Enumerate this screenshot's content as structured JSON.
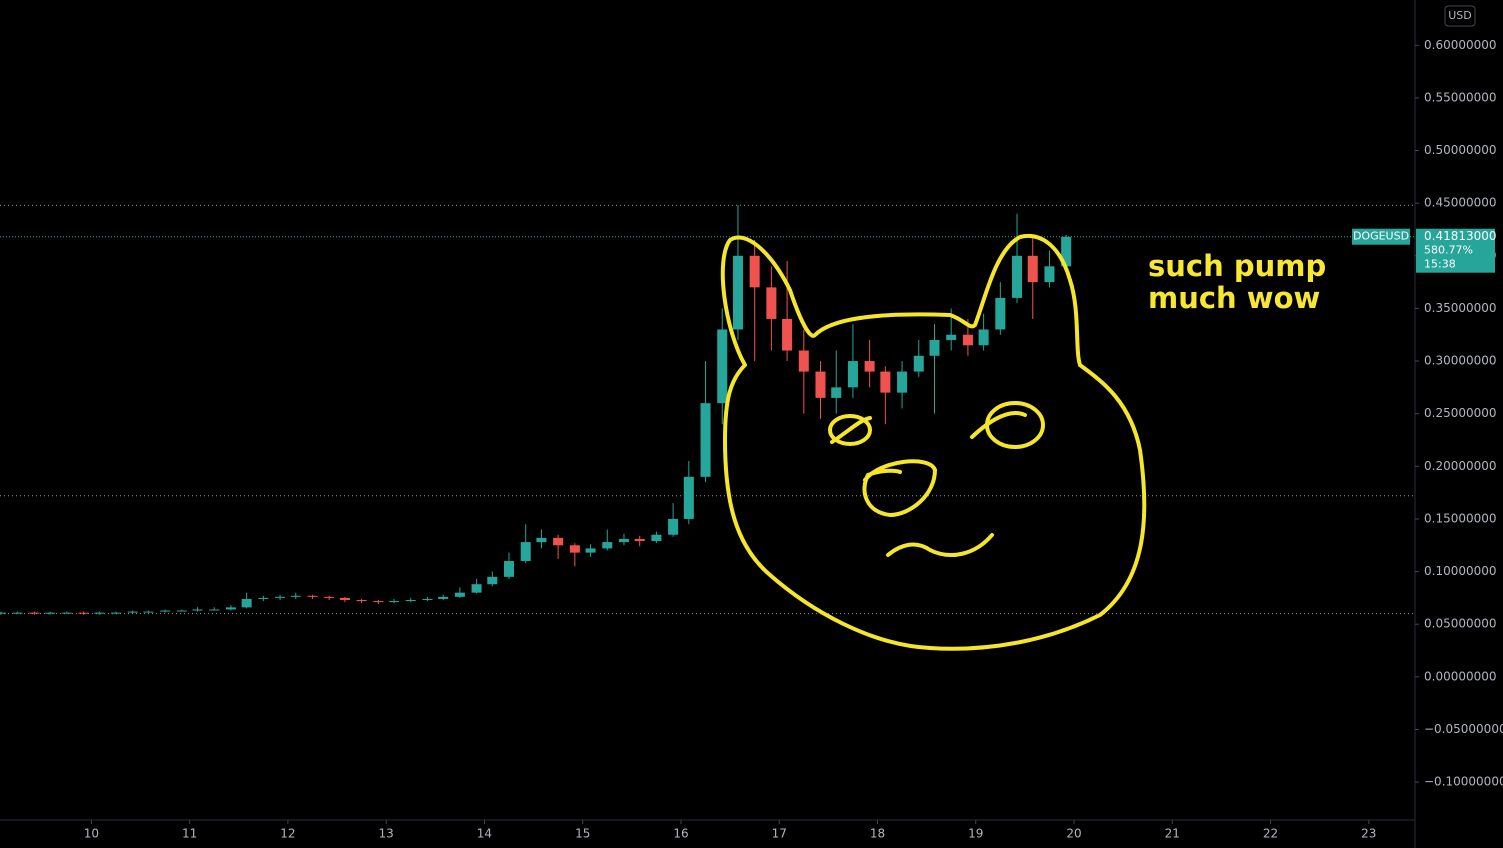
{
  "chart_data": {
    "type": "candlestick",
    "symbol": "DOGEUSD",
    "currency": "USD",
    "last_price": {
      "value": 0.41813,
      "label": "0.41813000"
    },
    "change_label": "580.77%",
    "countdown": "15:38",
    "annotations": [
      "such pump",
      "much wow"
    ],
    "up_color": "#26a69a",
    "down_color": "#ef5350",
    "price_lines": [
      0.448,
      0.172,
      0.06
    ],
    "x": [
      9.08,
      9.25,
      9.42,
      9.58,
      9.75,
      9.92,
      10.08,
      10.25,
      10.42,
      10.58,
      10.75,
      10.92,
      11.08,
      11.25,
      11.42,
      11.58,
      11.75,
      11.92,
      12.08,
      12.25,
      12.42,
      12.58,
      12.75,
      12.92,
      13.08,
      13.25,
      13.42,
      13.58,
      13.75,
      13.92,
      14.08,
      14.25,
      14.42,
      14.58,
      14.75,
      14.92,
      15.08,
      15.25,
      15.42,
      15.58,
      15.75,
      15.92,
      16.08,
      16.25,
      16.42,
      16.58,
      16.75,
      16.92,
      17.08,
      17.25,
      17.42,
      17.58,
      17.75,
      17.92,
      18.08,
      18.25,
      18.42,
      18.58,
      18.75,
      18.92,
      19.08,
      19.25,
      19.42,
      19.58,
      19.75,
      19.92
    ],
    "open": [
      0.06,
      0.061,
      0.061,
      0.06,
      0.061,
      0.061,
      0.06,
      0.061,
      0.061,
      0.062,
      0.062,
      0.063,
      0.063,
      0.064,
      0.064,
      0.066,
      0.074,
      0.075,
      0.076,
      0.077,
      0.076,
      0.075,
      0.073,
      0.072,
      0.071,
      0.072,
      0.073,
      0.074,
      0.076,
      0.08,
      0.088,
      0.095,
      0.11,
      0.128,
      0.132,
      0.125,
      0.118,
      0.122,
      0.128,
      0.131,
      0.129,
      0.135,
      0.15,
      0.19,
      0.26,
      0.33,
      0.4,
      0.37,
      0.34,
      0.31,
      0.29,
      0.265,
      0.275,
      0.3,
      0.29,
      0.27,
      0.29,
      0.305,
      0.32,
      0.325,
      0.315,
      0.33,
      0.36,
      0.4,
      0.375,
      0.39
    ],
    "high": [
      0.062,
      0.062,
      0.062,
      0.062,
      0.062,
      0.062,
      0.062,
      0.062,
      0.063,
      0.063,
      0.064,
      0.064,
      0.066,
      0.066,
      0.068,
      0.08,
      0.077,
      0.078,
      0.08,
      0.078,
      0.077,
      0.076,
      0.074,
      0.073,
      0.074,
      0.075,
      0.076,
      0.078,
      0.085,
      0.093,
      0.1,
      0.118,
      0.145,
      0.14,
      0.135,
      0.127,
      0.126,
      0.14,
      0.136,
      0.134,
      0.138,
      0.165,
      0.205,
      0.3,
      0.35,
      0.448,
      0.415,
      0.39,
      0.395,
      0.33,
      0.3,
      0.31,
      0.335,
      0.32,
      0.295,
      0.3,
      0.32,
      0.335,
      0.35,
      0.34,
      0.345,
      0.375,
      0.44,
      0.42,
      0.405,
      0.42
    ],
    "low": [
      0.059,
      0.06,
      0.059,
      0.059,
      0.06,
      0.059,
      0.059,
      0.06,
      0.06,
      0.061,
      0.061,
      0.062,
      0.062,
      0.063,
      0.063,
      0.065,
      0.072,
      0.073,
      0.074,
      0.074,
      0.073,
      0.071,
      0.07,
      0.069,
      0.07,
      0.071,
      0.072,
      0.073,
      0.075,
      0.079,
      0.086,
      0.093,
      0.108,
      0.122,
      0.112,
      0.105,
      0.114,
      0.12,
      0.125,
      0.124,
      0.127,
      0.133,
      0.145,
      0.185,
      0.24,
      0.32,
      0.3,
      0.31,
      0.3,
      0.25,
      0.245,
      0.25,
      0.265,
      0.275,
      0.24,
      0.255,
      0.285,
      0.25,
      0.31,
      0.305,
      0.31,
      0.325,
      0.355,
      0.34,
      0.37,
      0.385
    ],
    "close": [
      0.061,
      0.061,
      0.06,
      0.061,
      0.061,
      0.06,
      0.061,
      0.061,
      0.062,
      0.062,
      0.063,
      0.063,
      0.064,
      0.064,
      0.066,
      0.074,
      0.075,
      0.076,
      0.077,
      0.076,
      0.075,
      0.073,
      0.072,
      0.071,
      0.072,
      0.073,
      0.074,
      0.076,
      0.08,
      0.088,
      0.095,
      0.11,
      0.128,
      0.132,
      0.125,
      0.118,
      0.122,
      0.128,
      0.131,
      0.129,
      0.135,
      0.15,
      0.19,
      0.26,
      0.33,
      0.4,
      0.37,
      0.34,
      0.31,
      0.29,
      0.265,
      0.275,
      0.3,
      0.29,
      0.27,
      0.29,
      0.305,
      0.32,
      0.325,
      0.315,
      0.33,
      0.36,
      0.4,
      0.375,
      0.39,
      0.418
    ],
    "xlim": [
      9.07,
      23.47
    ],
    "xticks": [
      10,
      11,
      12,
      13,
      14,
      15,
      16,
      17,
      18,
      19,
      20,
      21,
      22,
      23
    ],
    "ylim": [
      -0.136,
      0.643
    ],
    "yticks": [
      {
        "value": -0.1,
        "label": "−0.10000000"
      },
      {
        "value": -0.05,
        "label": "−0.05000000"
      },
      {
        "value": 0,
        "label": "0.00000000"
      },
      {
        "value": 0.05,
        "label": "0.05000000"
      },
      {
        "value": 0.1,
        "label": "0.10000000"
      },
      {
        "value": 0.15,
        "label": "0.15000000"
      },
      {
        "value": 0.2,
        "label": "0.20000000"
      },
      {
        "value": 0.25,
        "label": "0.25000000"
      },
      {
        "value": 0.3,
        "label": "0.30000000"
      },
      {
        "value": 0.35,
        "label": "0.35000000"
      },
      {
        "value": 0.4,
        "label": "0.40000000"
      },
      {
        "value": 0.45,
        "label": "0.45000000"
      },
      {
        "value": 0.5,
        "label": "0.50000000"
      },
      {
        "value": 0.55,
        "label": "0.55000000"
      },
      {
        "value": 0.6,
        "label": "0.60000000"
      }
    ]
  }
}
